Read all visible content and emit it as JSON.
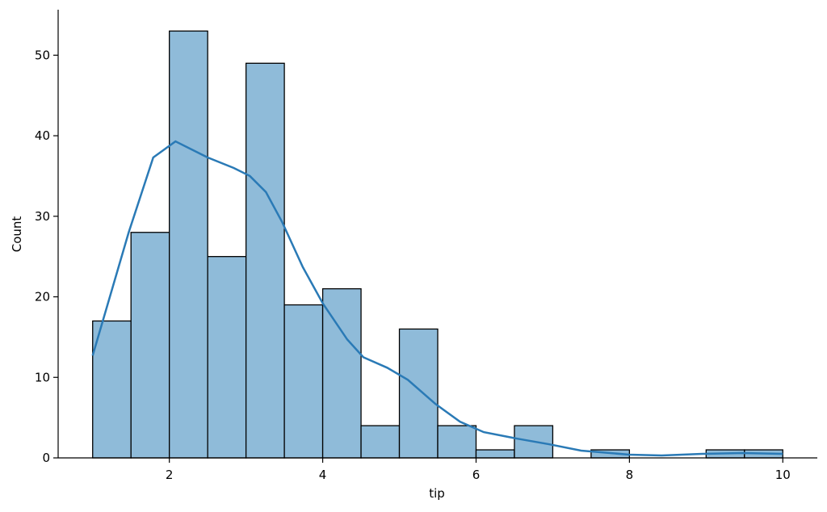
{
  "chart_data": {
    "type": "histogram",
    "xlabel": "tip",
    "ylabel": "Count",
    "bins": [
      1,
      1.5,
      2,
      2.5,
      3,
      3.5,
      4,
      4.5,
      5,
      5.5,
      6,
      6.5,
      7,
      7.5,
      8,
      8.5,
      9,
      9.5,
      10
    ],
    "counts": [
      17,
      28,
      53,
      25,
      49,
      19,
      21,
      4,
      16,
      4,
      1,
      4,
      0,
      1,
      0,
      0,
      1,
      1
    ],
    "color": "#8fbbd9",
    "edgecolor": "#000000",
    "kde": {
      "color": "#2a7ab6",
      "x": [
        1,
        1.47,
        1.79,
        2.08,
        2.5,
        2.84,
        3.05,
        3.26,
        3.47,
        3.74,
        4,
        4.32,
        4.53,
        4.84,
        5.11,
        5.47,
        5.79,
        6.1,
        6.53,
        6.95,
        7.37,
        8,
        8.42,
        8.95,
        9.47,
        10
      ],
      "values": [
        12.7,
        28,
        37.3,
        39.3,
        37.3,
        36,
        35,
        33,
        29.3,
        23.7,
        19.2,
        14.7,
        12.5,
        11.2,
        9.7,
        6.7,
        4.5,
        3.2,
        2.4,
        1.7,
        0.9,
        0.4,
        0.3,
        0.5,
        0.6,
        0.5
      ]
    },
    "xlim": [
      0.55,
      10.45
    ],
    "ylim": [
      0,
      55.65
    ],
    "xticks": [
      2,
      4,
      6,
      8,
      10
    ],
    "yticks": [
      0,
      10,
      20,
      30,
      40,
      50
    ]
  }
}
